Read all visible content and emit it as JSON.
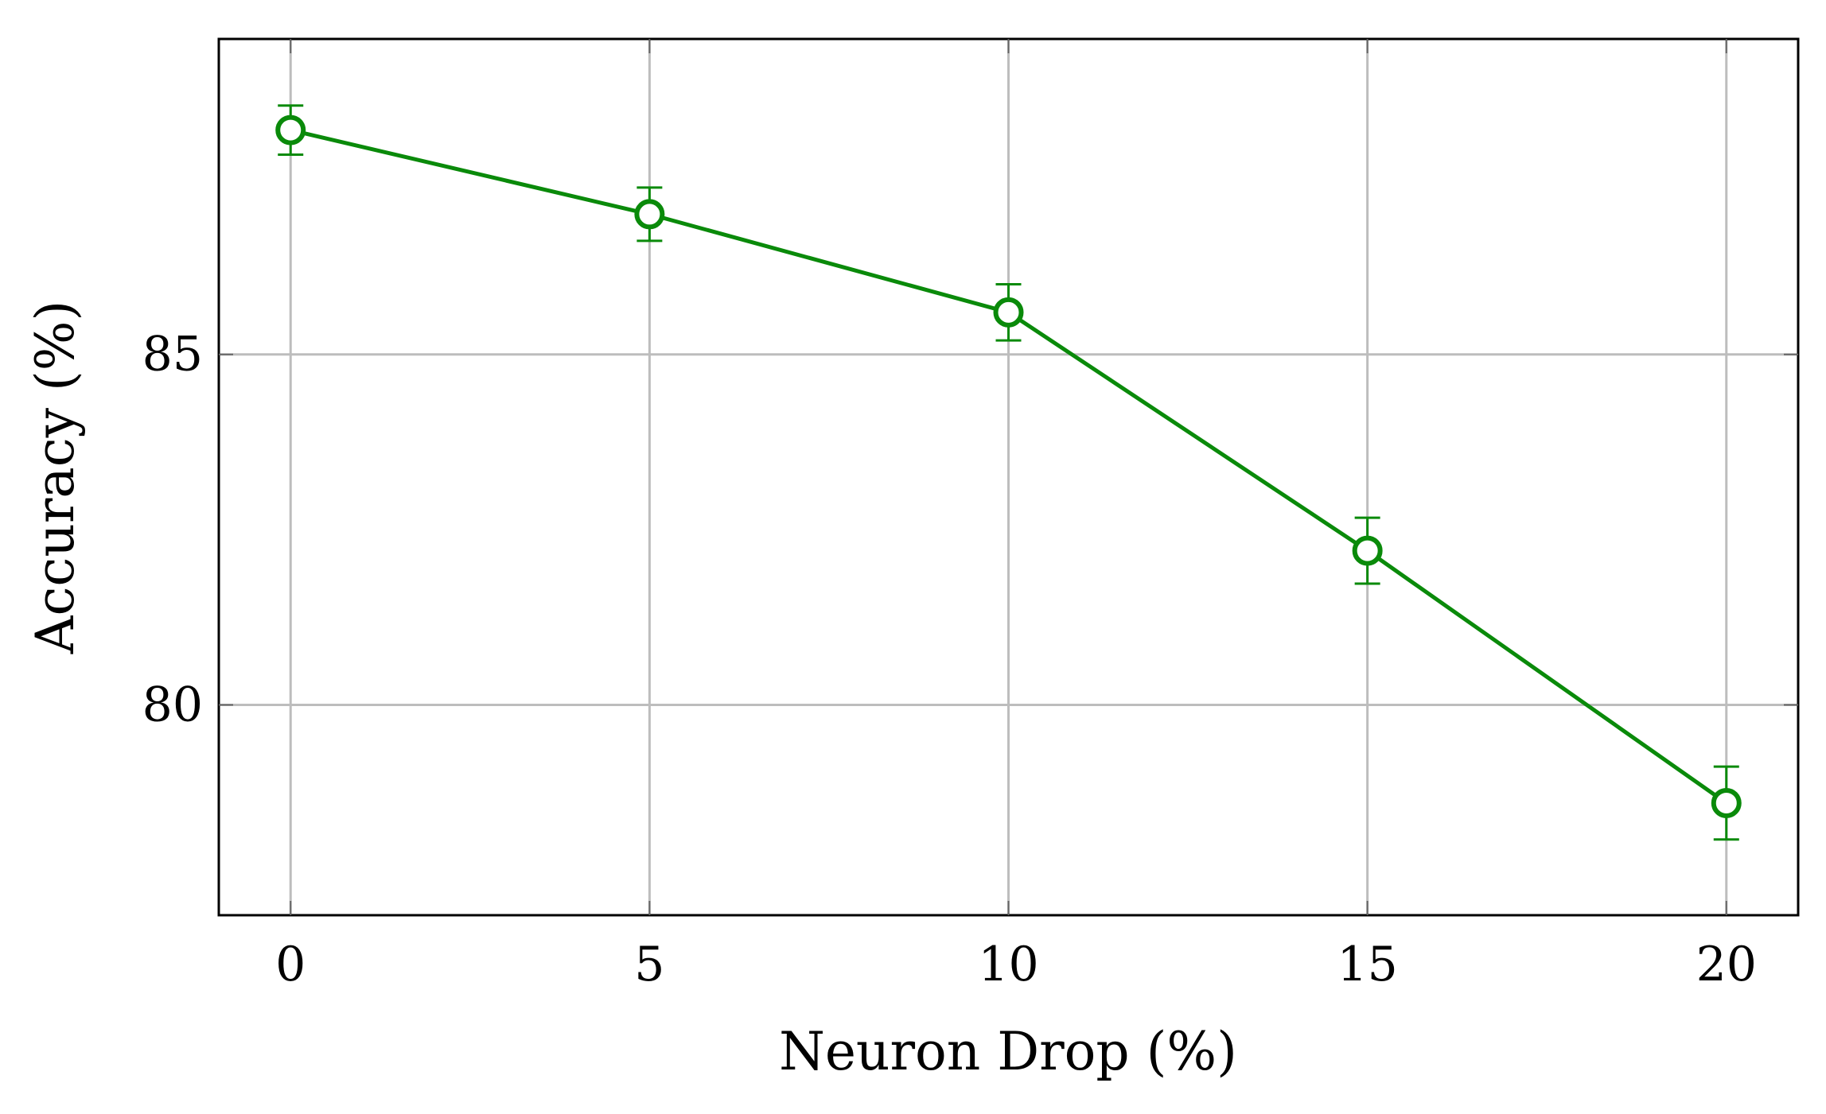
{
  "chart_data": {
    "type": "line",
    "title": "",
    "xlabel": "Neuron Drop (%)",
    "ylabel": "Accuracy (%)",
    "x": [
      0,
      5,
      10,
      15,
      20
    ],
    "series": [
      {
        "values": [
          88.2,
          87.0,
          85.6,
          82.2,
          78.6
        ],
        "error": [
          0.35,
          0.38,
          0.4,
          0.47,
          0.52
        ],
        "color": "#0a8a0a",
        "marker": "open-circle"
      }
    ],
    "xticks": [
      "0",
      "5",
      "10",
      "15",
      "20"
    ],
    "yticks": [
      "80",
      "85"
    ],
    "xlim": [
      -1,
      21
    ],
    "ylim": [
      77,
      89.5
    ],
    "grid": true,
    "legend": "none"
  }
}
